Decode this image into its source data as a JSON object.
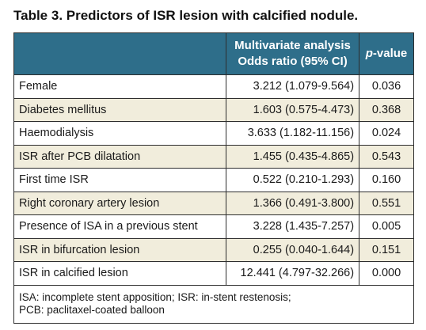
{
  "caption": "Table 3. Predictors of ISR lesion with calcified nodule.",
  "header": {
    "col1": "",
    "col2_line1": "Multivariate analysis",
    "col2_line2": "Odds ratio (95% CI)",
    "col3_italic": "p",
    "col3_rest": "-value"
  },
  "rows": [
    {
      "label": "Female",
      "or": "3.212 (1.079-9.564)",
      "p": "0.036"
    },
    {
      "label": "Diabetes mellitus",
      "or": "1.603 (0.575-4.473)",
      "p": "0.368"
    },
    {
      "label": "Haemodialysis",
      "or": "3.633 (1.182-11.156)",
      "p": "0.024"
    },
    {
      "label": "ISR after PCB dilatation",
      "or": "1.455 (0.435-4.865)",
      "p": "0.543"
    },
    {
      "label": "First time ISR",
      "or": "0.522 (0.210-1.293)",
      "p": "0.160"
    },
    {
      "label": "Right coronary artery lesion",
      "or": "1.366 (0.491-3.800)",
      "p": "0.551"
    },
    {
      "label": "Presence of ISA in a previous stent",
      "or": "3.228 (1.435-7.257)",
      "p": "0.005"
    },
    {
      "label": "ISR in bifurcation lesion",
      "or": "0.255 (0.040-1.644)",
      "p": "0.151"
    },
    {
      "label": "ISR in calcified lesion",
      "or": "12.441 (4.797-32.266)",
      "p": "0.000"
    }
  ],
  "footnote": {
    "line1": "ISA: incomplete stent apposition; ISR: in-stent restenosis;",
    "line2": "PCB: paclitaxel-coated balloon"
  },
  "colors": {
    "header_bg": "#2e6e8a",
    "shaded_row_bg": "#f1eddc",
    "border": "#2d2d2d"
  }
}
